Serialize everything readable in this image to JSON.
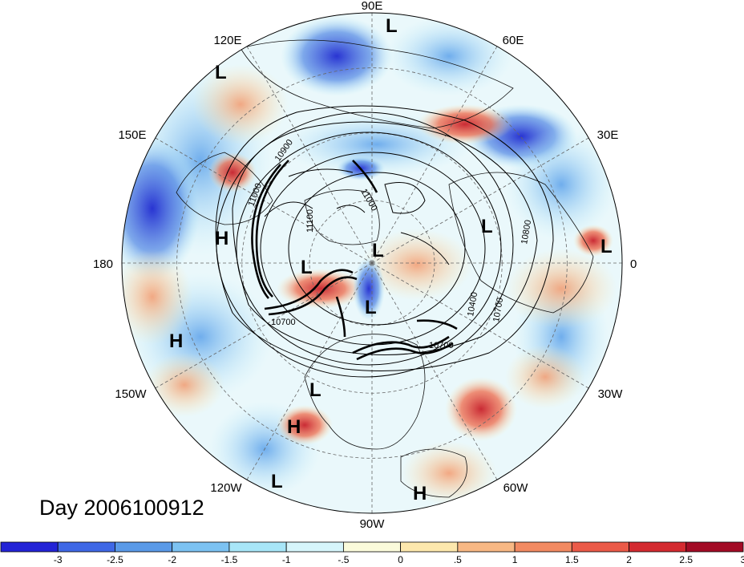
{
  "title": "Day 2006100912",
  "longitude_labels": [
    "90E",
    "60E",
    "30E",
    "0",
    "30W",
    "60W",
    "90W",
    "120W",
    "150W",
    "180",
    "150E",
    "120E"
  ],
  "contour_labels": [
    "10900",
    "11000",
    "11100",
    "10700",
    "10400",
    "10700",
    "10700",
    "10800",
    "11000"
  ],
  "pressure_centers": [
    "L",
    "L",
    "H",
    "L",
    "L",
    "L",
    "L",
    "L",
    "H",
    "L",
    "H",
    "L",
    "H"
  ],
  "colorbar": {
    "tick_labels": [
      "-3",
      "-2.5",
      "-2",
      "-1.5",
      "-1",
      "-.5",
      "0",
      ".5",
      "1",
      "1.5",
      "2",
      "2.5",
      "3"
    ],
    "colors": [
      "#2323d6",
      "#3f68e6",
      "#5a9ae8",
      "#7cc2f2",
      "#a8e6f8",
      "#d6f5fb",
      "#fbfbdb",
      "#fde8ad",
      "#f8b884",
      "#f28a62",
      "#eb5a48",
      "#d42a30",
      "#a30b25"
    ]
  }
}
